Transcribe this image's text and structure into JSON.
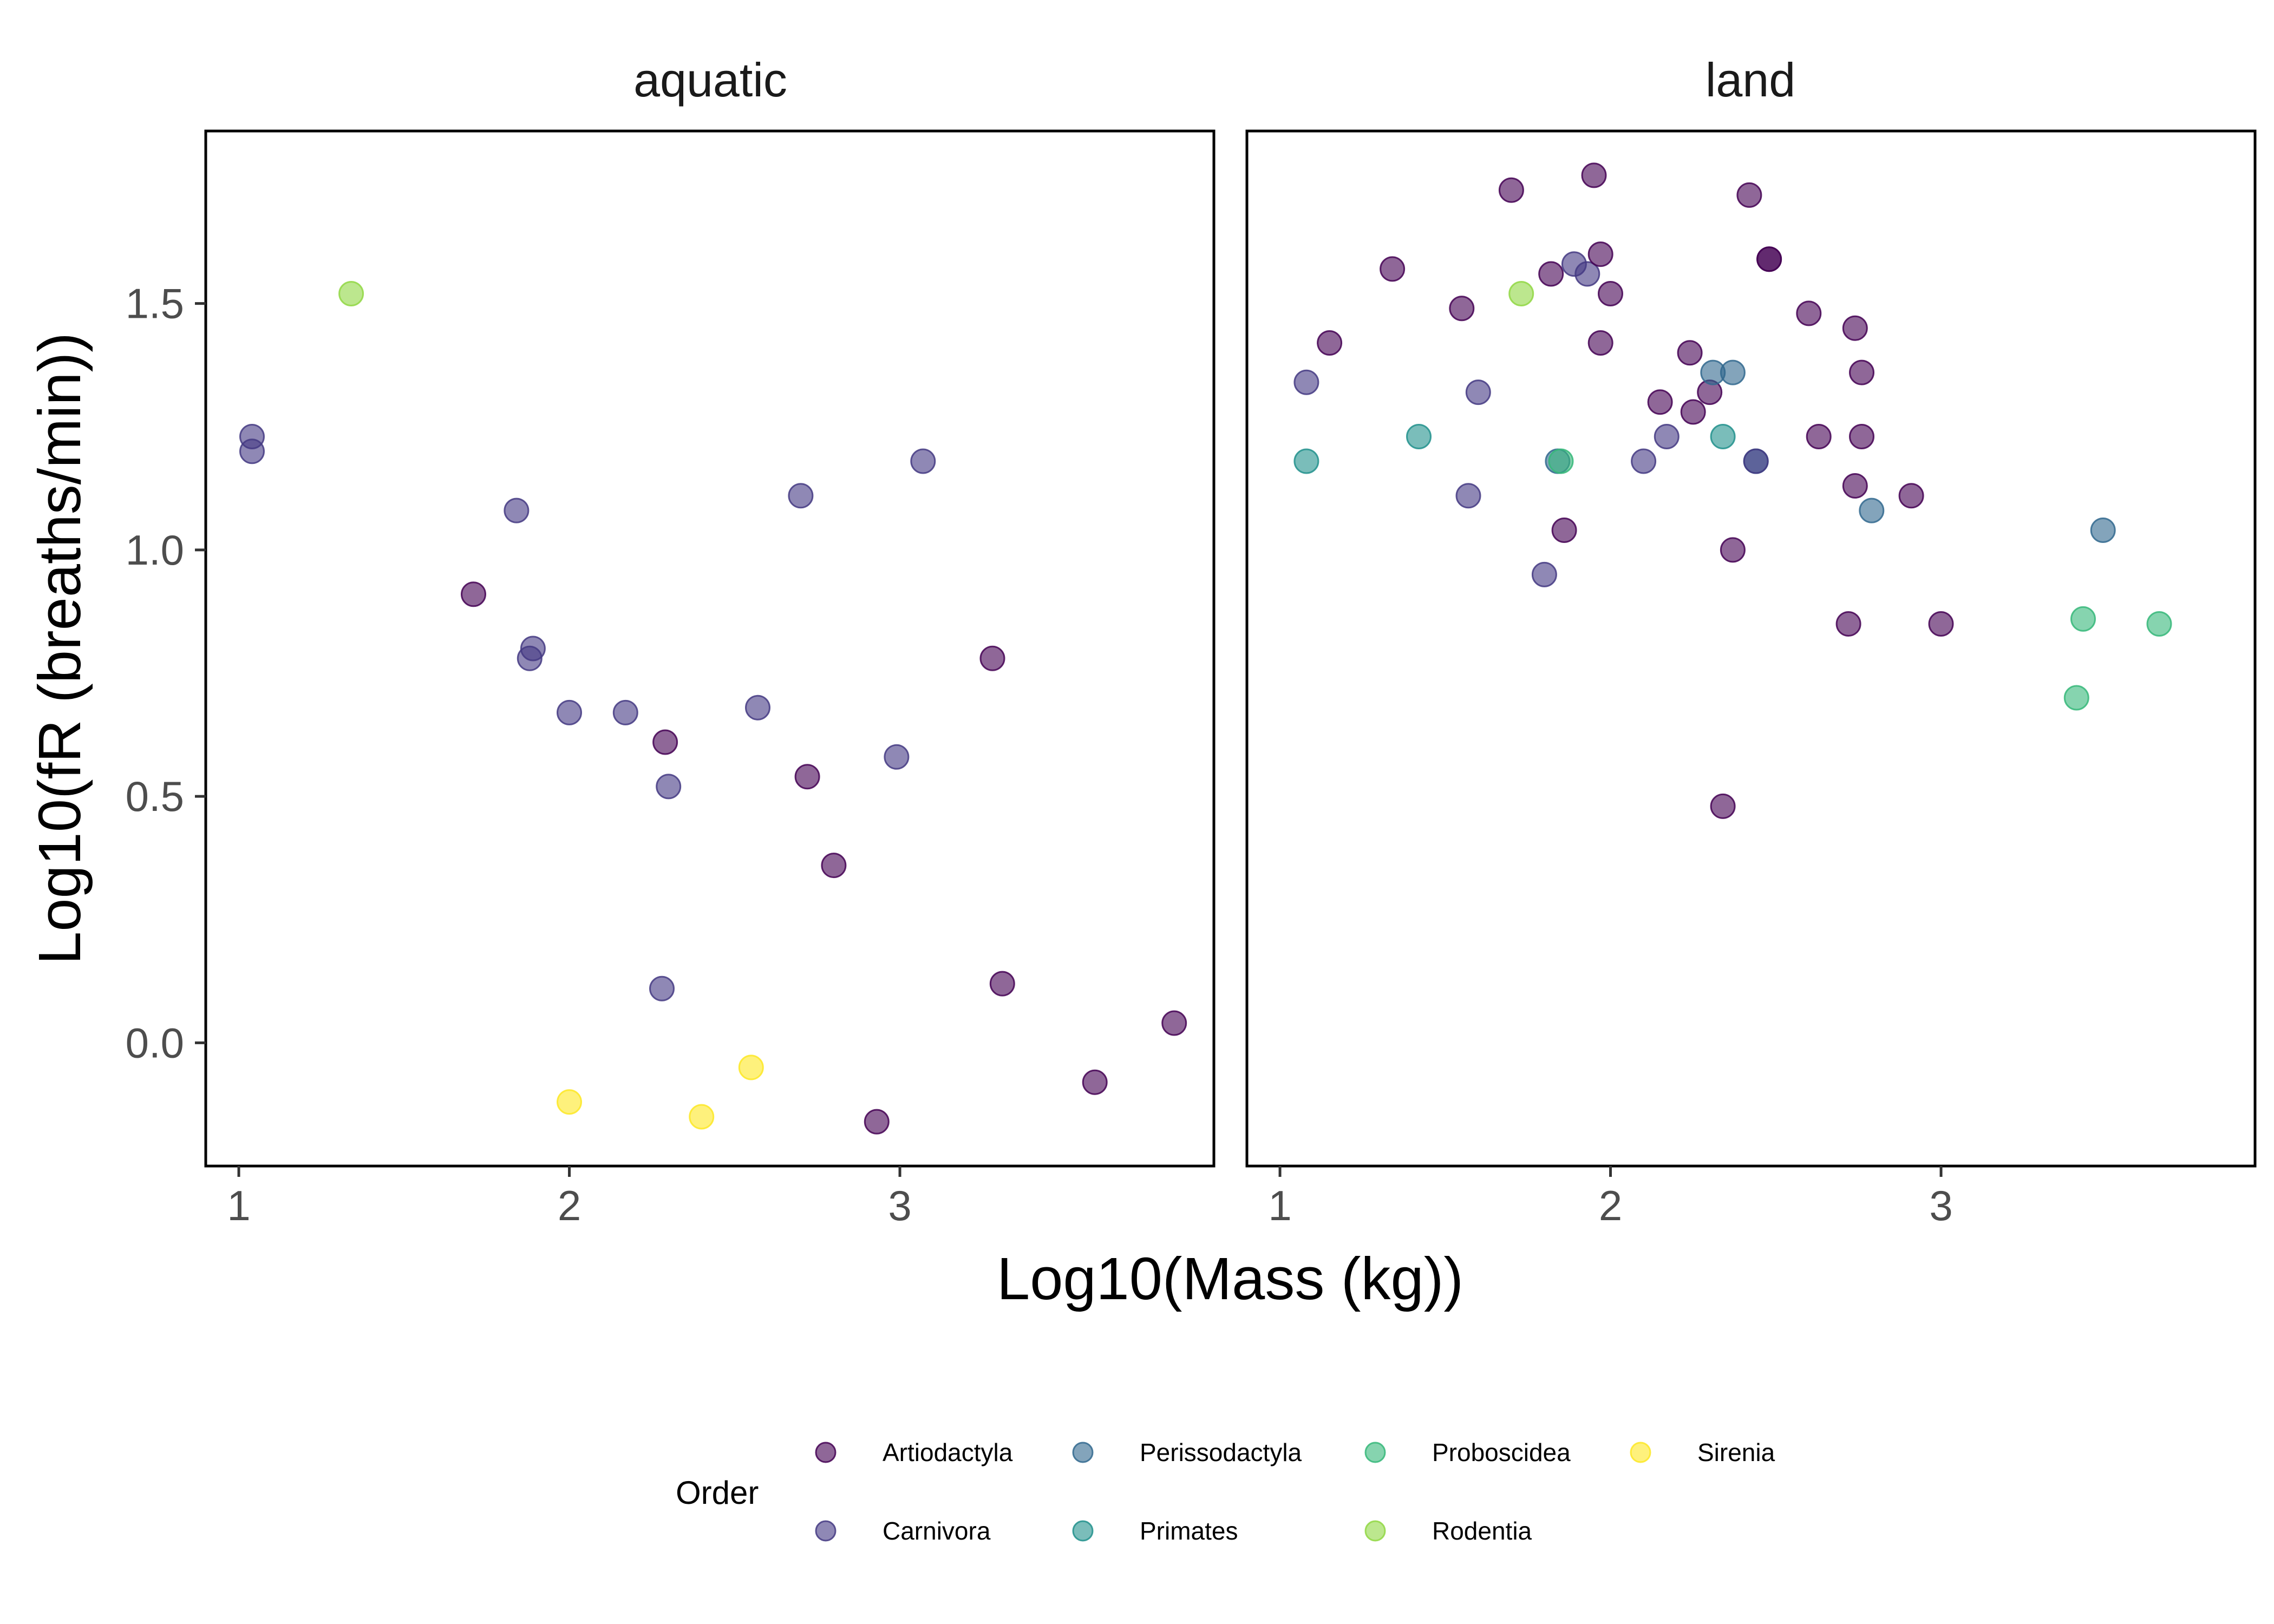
{
  "chart_data": {
    "type": "scatter",
    "xlabel": "Log10(Mass (kg))",
    "ylabel": "Log10(fR (breaths/min))",
    "xlim": [
      0.9,
      3.95
    ],
    "ylim": [
      -0.25,
      1.85
    ],
    "x_ticks": [
      "1",
      "2",
      "3"
    ],
    "y_ticks": [
      "0.0",
      "0.5",
      "1.0",
      "1.5"
    ],
    "grid": false,
    "legend_title": "Order",
    "legend_position": "bottom",
    "orders": [
      {
        "name": "Artiodactyla",
        "color": "#440154"
      },
      {
        "name": "Carnivora",
        "color": "#443983"
      },
      {
        "name": "Perissodactyla",
        "color": "#31688e"
      },
      {
        "name": "Primates",
        "color": "#21918c"
      },
      {
        "name": "Proboscidea",
        "color": "#35b779"
      },
      {
        "name": "Rodentia",
        "color": "#90d743"
      },
      {
        "name": "Sirenia",
        "color": "#fde725"
      }
    ],
    "point_opacity": 0.6,
    "panels": [
      {
        "label": "aquatic",
        "points": [
          {
            "x": 1.04,
            "y": 1.23,
            "order": "Carnivora"
          },
          {
            "x": 1.04,
            "y": 1.2,
            "order": "Carnivora"
          },
          {
            "x": 1.34,
            "y": 1.52,
            "order": "Rodentia"
          },
          {
            "x": 1.71,
            "y": 0.91,
            "order": "Artiodactyla"
          },
          {
            "x": 1.84,
            "y": 1.08,
            "order": "Carnivora"
          },
          {
            "x": 1.89,
            "y": 0.8,
            "order": "Carnivora"
          },
          {
            "x": 1.88,
            "y": 0.78,
            "order": "Carnivora"
          },
          {
            "x": 2.0,
            "y": 0.67,
            "order": "Carnivora"
          },
          {
            "x": 2.0,
            "y": -0.12,
            "order": "Sirenia"
          },
          {
            "x": 2.17,
            "y": 0.67,
            "order": "Carnivora"
          },
          {
            "x": 2.29,
            "y": 0.61,
            "order": "Artiodactyla"
          },
          {
            "x": 2.3,
            "y": 0.52,
            "order": "Carnivora"
          },
          {
            "x": 2.28,
            "y": 0.11,
            "order": "Carnivora"
          },
          {
            "x": 2.4,
            "y": -0.15,
            "order": "Sirenia"
          },
          {
            "x": 2.55,
            "y": -0.05,
            "order": "Sirenia"
          },
          {
            "x": 2.57,
            "y": 0.68,
            "order": "Carnivora"
          },
          {
            "x": 2.7,
            "y": 1.11,
            "order": "Carnivora"
          },
          {
            "x": 2.72,
            "y": 0.54,
            "order": "Artiodactyla"
          },
          {
            "x": 2.8,
            "y": 0.36,
            "order": "Artiodactyla"
          },
          {
            "x": 2.93,
            "y": -0.16,
            "order": "Artiodactyla"
          },
          {
            "x": 2.99,
            "y": 0.58,
            "order": "Carnivora"
          },
          {
            "x": 3.07,
            "y": 1.18,
            "order": "Carnivora"
          },
          {
            "x": 3.28,
            "y": 0.78,
            "order": "Artiodactyla"
          },
          {
            "x": 3.31,
            "y": 0.12,
            "order": "Artiodactyla"
          },
          {
            "x": 3.59,
            "y": -0.08,
            "order": "Artiodactyla"
          },
          {
            "x": 3.83,
            "y": 0.04,
            "order": "Artiodactyla"
          }
        ]
      },
      {
        "label": "land",
        "points": [
          {
            "x": 1.08,
            "y": 1.34,
            "order": "Carnivora"
          },
          {
            "x": 1.08,
            "y": 1.18,
            "order": "Primates"
          },
          {
            "x": 1.15,
            "y": 1.42,
            "order": "Artiodactyla"
          },
          {
            "x": 1.34,
            "y": 1.57,
            "order": "Artiodactyla"
          },
          {
            "x": 1.42,
            "y": 1.23,
            "order": "Primates"
          },
          {
            "x": 1.55,
            "y": 1.49,
            "order": "Artiodactyla"
          },
          {
            "x": 1.57,
            "y": 1.11,
            "order": "Carnivora"
          },
          {
            "x": 1.6,
            "y": 1.32,
            "order": "Carnivora"
          },
          {
            "x": 1.7,
            "y": 1.73,
            "order": "Artiodactyla"
          },
          {
            "x": 1.73,
            "y": 1.52,
            "order": "Rodentia"
          },
          {
            "x": 1.8,
            "y": 0.95,
            "order": "Carnivora"
          },
          {
            "x": 1.82,
            "y": 1.56,
            "order": "Artiodactyla"
          },
          {
            "x": 1.84,
            "y": 1.18,
            "order": "Perissodactyla"
          },
          {
            "x": 1.85,
            "y": 1.18,
            "order": "Proboscidea"
          },
          {
            "x": 1.86,
            "y": 1.04,
            "order": "Artiodactyla"
          },
          {
            "x": 1.89,
            "y": 1.58,
            "order": "Carnivora"
          },
          {
            "x": 1.93,
            "y": 1.56,
            "order": "Carnivora"
          },
          {
            "x": 1.95,
            "y": 1.76,
            "order": "Artiodactyla"
          },
          {
            "x": 1.97,
            "y": 1.6,
            "order": "Artiodactyla"
          },
          {
            "x": 1.97,
            "y": 1.42,
            "order": "Artiodactyla"
          },
          {
            "x": 2.0,
            "y": 1.52,
            "order": "Artiodactyla"
          },
          {
            "x": 2.1,
            "y": 1.18,
            "order": "Carnivora"
          },
          {
            "x": 2.15,
            "y": 1.3,
            "order": "Artiodactyla"
          },
          {
            "x": 2.17,
            "y": 1.23,
            "order": "Carnivora"
          },
          {
            "x": 2.24,
            "y": 1.4,
            "order": "Artiodactyla"
          },
          {
            "x": 2.25,
            "y": 1.28,
            "order": "Artiodactyla"
          },
          {
            "x": 2.3,
            "y": 1.32,
            "order": "Artiodactyla"
          },
          {
            "x": 2.31,
            "y": 1.36,
            "order": "Perissodactyla"
          },
          {
            "x": 2.34,
            "y": 1.23,
            "order": "Primates"
          },
          {
            "x": 2.34,
            "y": 0.48,
            "order": "Artiodactyla"
          },
          {
            "x": 2.37,
            "y": 1.36,
            "order": "Perissodactyla"
          },
          {
            "x": 2.37,
            "y": 1.0,
            "order": "Artiodactyla"
          },
          {
            "x": 2.42,
            "y": 1.72,
            "order": "Artiodactyla"
          },
          {
            "x": 2.44,
            "y": 1.18,
            "order": "Perissodactyla"
          },
          {
            "x": 2.44,
            "y": 1.18,
            "order": "Carnivora"
          },
          {
            "x": 2.48,
            "y": 1.59,
            "order": "Artiodactyla"
          },
          {
            "x": 2.48,
            "y": 1.59,
            "order": "Artiodactyla"
          },
          {
            "x": 2.6,
            "y": 1.48,
            "order": "Artiodactyla"
          },
          {
            "x": 2.63,
            "y": 1.23,
            "order": "Artiodactyla"
          },
          {
            "x": 2.72,
            "y": 0.85,
            "order": "Artiodactyla"
          },
          {
            "x": 2.74,
            "y": 1.45,
            "order": "Artiodactyla"
          },
          {
            "x": 2.74,
            "y": 1.13,
            "order": "Artiodactyla"
          },
          {
            "x": 2.76,
            "y": 1.36,
            "order": "Artiodactyla"
          },
          {
            "x": 2.76,
            "y": 1.23,
            "order": "Artiodactyla"
          },
          {
            "x": 2.79,
            "y": 1.08,
            "order": "Perissodactyla"
          },
          {
            "x": 2.91,
            "y": 1.11,
            "order": "Artiodactyla"
          },
          {
            "x": 3.0,
            "y": 0.85,
            "order": "Artiodactyla"
          },
          {
            "x": 3.41,
            "y": 0.7,
            "order": "Proboscidea"
          },
          {
            "x": 3.43,
            "y": 0.86,
            "order": "Proboscidea"
          },
          {
            "x": 3.49,
            "y": 1.04,
            "order": "Perissodactyla"
          },
          {
            "x": 3.66,
            "y": 0.85,
            "order": "Proboscidea"
          }
        ]
      }
    ]
  }
}
